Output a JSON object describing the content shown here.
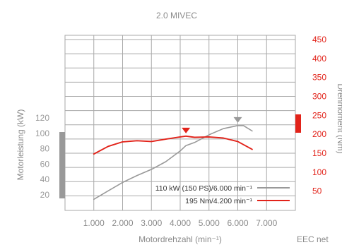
{
  "chart_data": {
    "type": "line",
    "title": "2.0 MIVEC",
    "xlabel": "Motordrehzahl (min⁻¹)",
    "ylabel_left": "Motorleistung (kW)",
    "ylabel_right": "Drehmoment (Nm)",
    "note": "EEC net",
    "x_ticks": [
      1000,
      2000,
      3000,
      4000,
      5000,
      6000,
      7000
    ],
    "x_tick_labels": [
      "1.000",
      "2.000",
      "3.000",
      "4.000",
      "5.000",
      "6.000",
      "7.000"
    ],
    "xlim": [
      0,
      8000
    ],
    "left_axis": {
      "ticks": [
        20,
        40,
        60,
        80,
        100,
        120
      ],
      "tick_labels": [
        "20",
        "40",
        "60",
        "80",
        "100",
        "120"
      ],
      "ylim": [
        0,
        120
      ],
      "color": "#999999"
    },
    "right_axis": {
      "ticks": [
        50,
        100,
        150,
        200,
        250,
        300,
        350,
        400,
        450
      ],
      "tick_labels": [
        "50",
        "100",
        "150",
        "200",
        "250",
        "300",
        "350",
        "400",
        "450"
      ],
      "ylim": [
        0,
        450
      ],
      "color": "#e2231a"
    },
    "series": [
      {
        "name": "110 kW (150 PS)/6.000 min⁻¹",
        "axis": "left",
        "color": "#999999",
        "peak": [
          6000,
          110
        ],
        "x": [
          1000,
          1500,
          2000,
          2500,
          3000,
          3500,
          4000,
          4200,
          4500,
          5000,
          5500,
          6000,
          6200,
          6500
        ],
        "y": [
          14,
          25,
          36,
          45,
          53,
          63,
          77,
          84,
          88,
          98,
          106,
          110,
          110,
          103
        ]
      },
      {
        "name": "195 Nm/4.200 min⁻¹",
        "axis": "right",
        "color": "#e2231a",
        "peak": [
          4200,
          195
        ],
        "x": [
          1000,
          1500,
          2000,
          2500,
          3000,
          3500,
          4000,
          4200,
          4500,
          5000,
          5500,
          6000,
          6500
        ],
        "y": [
          148,
          168,
          180,
          183,
          181,
          187,
          193,
          195,
          192,
          193,
          190,
          181,
          160
        ]
      }
    ]
  }
}
